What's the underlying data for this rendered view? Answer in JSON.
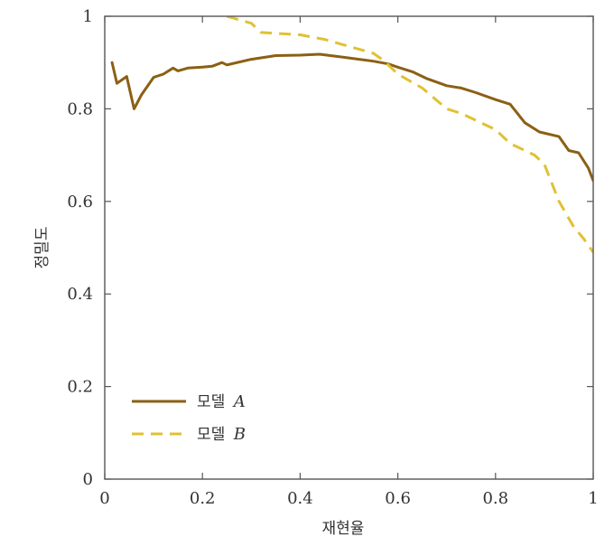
{
  "chart_data": {
    "type": "line",
    "title": "",
    "xlabel": "재현율",
    "ylabel": "정밀도",
    "xlim": [
      0,
      1
    ],
    "ylim": [
      0,
      1
    ],
    "x_ticks": [
      "0",
      "0.2",
      "0.4",
      "0.6",
      "0.8",
      "1"
    ],
    "y_ticks": [
      "0",
      "0.2",
      "0.4",
      "0.6",
      "0.8",
      "1"
    ],
    "grid": false,
    "legend_position": "bottom-left",
    "series": [
      {
        "name": "모델 A",
        "name_prefix": "모델",
        "name_letter": "A",
        "color": "#8b6014",
        "line_style": "solid",
        "x": [
          0.015,
          0.025,
          0.045,
          0.06,
          0.075,
          0.1,
          0.12,
          0.14,
          0.15,
          0.17,
          0.2,
          0.22,
          0.24,
          0.25,
          0.3,
          0.35,
          0.4,
          0.44,
          0.5,
          0.55,
          0.58,
          0.6,
          0.63,
          0.66,
          0.7,
          0.73,
          0.76,
          0.8,
          0.83,
          0.86,
          0.89,
          0.93,
          0.95,
          0.97,
          0.99,
          1.0
        ],
        "y": [
          0.9,
          0.855,
          0.87,
          0.8,
          0.83,
          0.868,
          0.875,
          0.888,
          0.882,
          0.888,
          0.89,
          0.892,
          0.9,
          0.895,
          0.907,
          0.915,
          0.916,
          0.918,
          0.91,
          0.903,
          0.897,
          0.89,
          0.88,
          0.865,
          0.85,
          0.845,
          0.835,
          0.82,
          0.81,
          0.77,
          0.75,
          0.74,
          0.71,
          0.705,
          0.672,
          0.645
        ]
      },
      {
        "name": "모델 B",
        "name_prefix": "모델",
        "name_letter": "B",
        "color": "#e0c133",
        "line_style": "dashed",
        "x": [
          0.25,
          0.3,
          0.32,
          0.4,
          0.45,
          0.5,
          0.55,
          0.57,
          0.6,
          0.65,
          0.7,
          0.73,
          0.8,
          0.83,
          0.88,
          0.9,
          0.93,
          0.96,
          0.98,
          1.0
        ],
        "y": [
          1.0,
          0.985,
          0.965,
          0.96,
          0.95,
          0.935,
          0.92,
          0.905,
          0.875,
          0.845,
          0.8,
          0.79,
          0.755,
          0.725,
          0.7,
          0.68,
          0.6,
          0.545,
          0.52,
          0.49
        ]
      }
    ]
  }
}
